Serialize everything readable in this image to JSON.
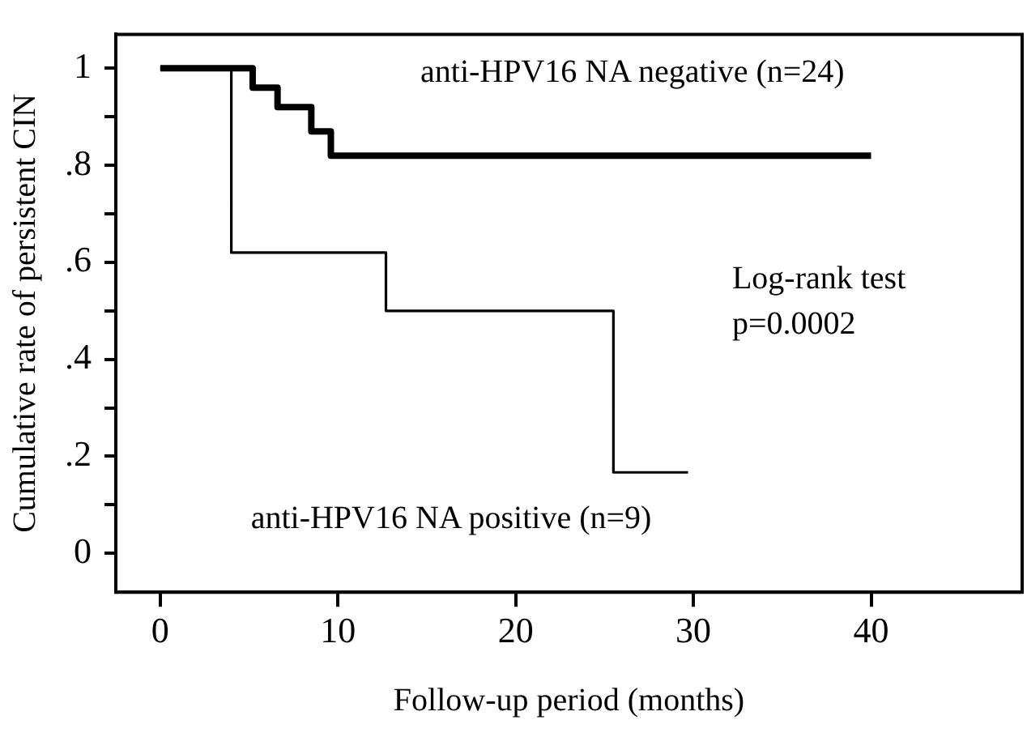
{
  "chart_data": {
    "type": "step",
    "xlabel": "Follow-up period (months)",
    "ylabel": "Cumulative rate of persistent CIN",
    "xlim": [
      -2.5,
      48.5
    ],
    "xticks": [
      0,
      10,
      20,
      30,
      40
    ],
    "ylim": [
      -0.08,
      1.07
    ],
    "yticks": [
      {
        "value": 0,
        "label": "0"
      },
      {
        "value": 0.1,
        "label": null
      },
      {
        "value": 0.2,
        "label": ".2"
      },
      {
        "value": 0.3,
        "label": null
      },
      {
        "value": 0.4,
        "label": ".4"
      },
      {
        "value": 0.5,
        "label": null
      },
      {
        "value": 0.6,
        "label": ".6"
      },
      {
        "value": 0.7,
        "label": null
      },
      {
        "value": 0.8,
        "label": ".8"
      },
      {
        "value": 0.9,
        "label": null
      },
      {
        "value": 1,
        "label": "1"
      }
    ],
    "series": [
      {
        "name": "anti-HPV16 NA negative (n=24)",
        "color": "#000000",
        "x": [
          0,
          5.2,
          6.6,
          8.5,
          9.6,
          40
        ],
        "values": [
          1,
          0.96,
          0.92,
          0.87,
          0.82,
          0.82
        ]
      },
      {
        "name": "anti-HPV16 NA positive (n=9)",
        "color": "#000000",
        "x": [
          0,
          4,
          12.7,
          25.5,
          29.7
        ],
        "values": [
          1,
          0.62,
          0.5,
          0.167,
          0.167
        ]
      }
    ],
    "annotations": [
      "Log-rank test",
      "p=0.0002"
    ],
    "grid": false,
    "legend": false,
    "marker": "none",
    "line_style": "solid"
  }
}
